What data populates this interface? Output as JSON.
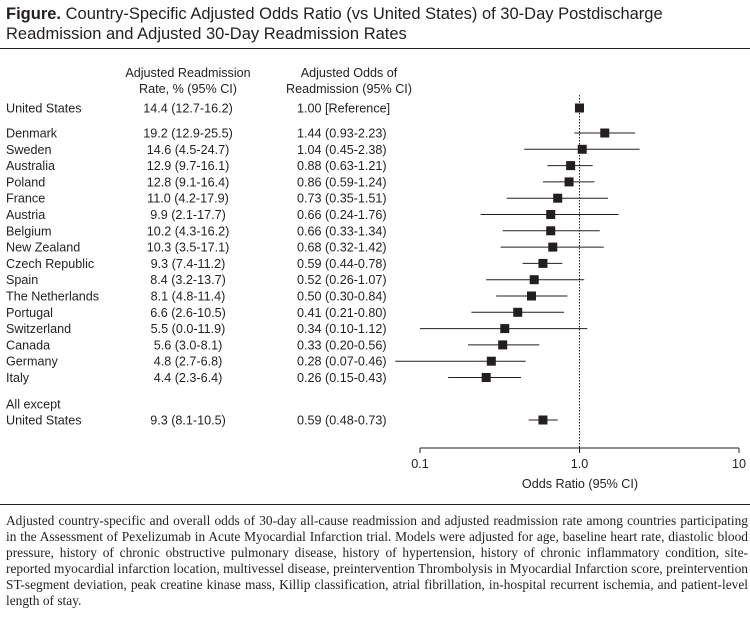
{
  "figure": {
    "label": "Figure.",
    "title": "Country-Specific Adjusted Odds Ratio (vs United States) of 30-Day Postdischarge Readmission and Adjusted 30-Day Readmission Rates",
    "caption": "Adjusted country-specific and overall odds of 30-day all-cause readmission and adjusted readmission rate among countries participating in the Assessment of Pexelizumab in Acute Myocardial Infarction trial. Models were adjusted for age, baseline heart rate, diastolic blood pressure, history of chronic obstructive pulmonary disease, history of hypertension, history of chronic inflammatory condition, site-reported myocardial infarction location, multivessel disease, preintervention Thrombolysis in Myocardial Infarction score, preintervention ST-segment deviation, peak creatine kinase mass, Killip classification, atrial fibrillation, in-hospital recurrent ischemia, and patient-level length of stay."
  },
  "chart_data": {
    "type": "forest",
    "xlabel": "Odds Ratio (95% CI)",
    "x_scale": "log",
    "xlim": [
      0.1,
      10
    ],
    "x_ticks": [
      0.1,
      1.0,
      10
    ],
    "x_tick_labels": [
      "0.1",
      "1.0",
      "10"
    ],
    "reference_line": 1.0,
    "column_headers": {
      "rate": [
        "Adjusted Readmission",
        "Rate, % (95% CI)"
      ],
      "or": [
        "Adjusted Odds of",
        "Readmission (95% CI)"
      ]
    },
    "rows": [
      {
        "label": "United States",
        "rate": "14.4 (12.7-16.2)",
        "or_text": "1.00 [Reference]",
        "or": 1.0,
        "lo": null,
        "hi": null
      },
      {
        "label": "Denmark",
        "rate": "19.2 (12.9-25.5)",
        "or_text": "1.44 (0.93-2.23)",
        "or": 1.44,
        "lo": 0.93,
        "hi": 2.23
      },
      {
        "label": "Sweden",
        "rate": "14.6 (4.5-24.7)",
        "or_text": "1.04 (0.45-2.38)",
        "or": 1.04,
        "lo": 0.45,
        "hi": 2.38
      },
      {
        "label": "Australia",
        "rate": "12.9 (9.7-16.1)",
        "or_text": "0.88 (0.63-1.21)",
        "or": 0.88,
        "lo": 0.63,
        "hi": 1.21
      },
      {
        "label": "Poland",
        "rate": "12.8 (9.1-16.4)",
        "or_text": "0.86 (0.59-1.24)",
        "or": 0.86,
        "lo": 0.59,
        "hi": 1.24
      },
      {
        "label": "France",
        "rate": "11.0 (4.2-17.9)",
        "or_text": "0.73 (0.35-1.51)",
        "or": 0.73,
        "lo": 0.35,
        "hi": 1.51
      },
      {
        "label": "Austria",
        "rate": "9.9 (2.1-17.7)",
        "or_text": "0.66 (0.24-1.76)",
        "or": 0.66,
        "lo": 0.24,
        "hi": 1.76
      },
      {
        "label": "Belgium",
        "rate": "10.2 (4.3-16.2)",
        "or_text": "0.66 (0.33-1.34)",
        "or": 0.66,
        "lo": 0.33,
        "hi": 1.34
      },
      {
        "label": "New Zealand",
        "rate": "10.3 (3.5-17.1)",
        "or_text": "0.68 (0.32-1.42)",
        "or": 0.68,
        "lo": 0.32,
        "hi": 1.42
      },
      {
        "label": "Czech Republic",
        "rate": "9.3 (7.4-11.2)",
        "or_text": "0.59 (0.44-0.78)",
        "or": 0.59,
        "lo": 0.44,
        "hi": 0.78
      },
      {
        "label": "Spain",
        "rate": "8.4 (3.2-13.7)",
        "or_text": "0.52 (0.26-1.07)",
        "or": 0.52,
        "lo": 0.26,
        "hi": 1.07
      },
      {
        "label": "The Netherlands",
        "rate": "8.1 (4.8-11.4)",
        "or_text": "0.50 (0.30-0.84)",
        "or": 0.5,
        "lo": 0.3,
        "hi": 0.84
      },
      {
        "label": "Portugal",
        "rate": "6.6 (2.6-10.5)",
        "or_text": "0.41 (0.21-0.80)",
        "or": 0.41,
        "lo": 0.21,
        "hi": 0.8
      },
      {
        "label": "Switzerland",
        "rate": "5.5 (0.0-11.9)",
        "or_text": "0.34 (0.10-1.12)",
        "or": 0.34,
        "lo": 0.1,
        "hi": 1.12
      },
      {
        "label": "Canada",
        "rate": "5.6 (3.0-8.1)",
        "or_text": "0.33 (0.20-0.56)",
        "or": 0.33,
        "lo": 0.2,
        "hi": 0.56
      },
      {
        "label": "Germany",
        "rate": "4.8 (2.7-6.8)",
        "or_text": "0.28 (0.07-0.46)",
        "or": 0.28,
        "lo": 0.07,
        "hi": 0.46
      },
      {
        "label": "Italy",
        "rate": "4.4 (2.3-6.4)",
        "or_text": "0.26 (0.15-0.43)",
        "or": 0.26,
        "lo": 0.15,
        "hi": 0.43
      },
      {
        "label": [
          "All except",
          "United States"
        ],
        "rate": "9.3 (8.1-10.5)",
        "or_text": "0.59 (0.48-0.73)",
        "or": 0.59,
        "lo": 0.48,
        "hi": 0.73
      }
    ]
  }
}
